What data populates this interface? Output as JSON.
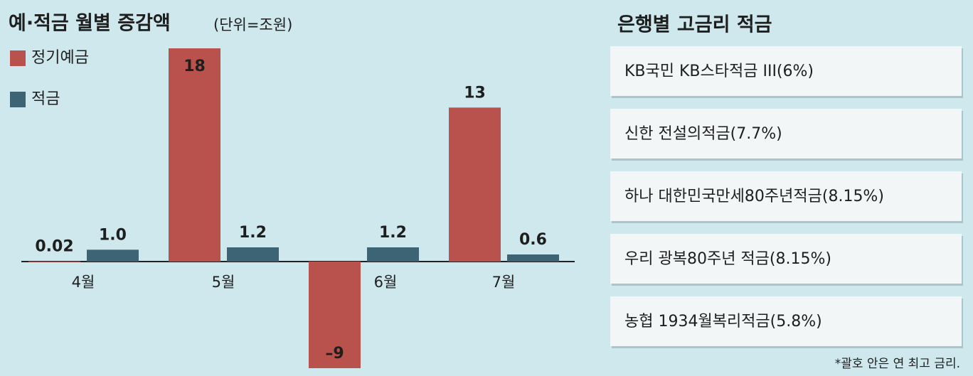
{
  "chart_data": {
    "type": "bar",
    "title": "예·적금 월별 증감액",
    "subtitle": "(단위=조원)",
    "categories": [
      "4월",
      "5월",
      "6월",
      "7월"
    ],
    "series": [
      {
        "name": "정기예금",
        "color": "#b9524d",
        "values": [
          0.02,
          18,
          -9,
          13
        ],
        "value_labels": [
          "0.02",
          "18",
          "–9",
          "13"
        ]
      },
      {
        "name": "적금",
        "color": "#3d6474",
        "values": [
          1.0,
          1.2,
          1.2,
          0.6
        ],
        "value_labels": [
          "1.0",
          "1.2",
          "1.2",
          "0.6"
        ]
      }
    ]
  },
  "panel": {
    "title": "은행별 고금리 적금",
    "items": [
      "KB국민 KB스타적금 III(6%)",
      "신한 전설의적금(7.7%)",
      "하나 대한민국만세80주년적금(8.15%)",
      "우리 광복80주년 적금(8.15%)",
      "농협 1934월복리적금(5.8%)"
    ],
    "footnote": "*괄호 안은 연 최고 금리."
  }
}
